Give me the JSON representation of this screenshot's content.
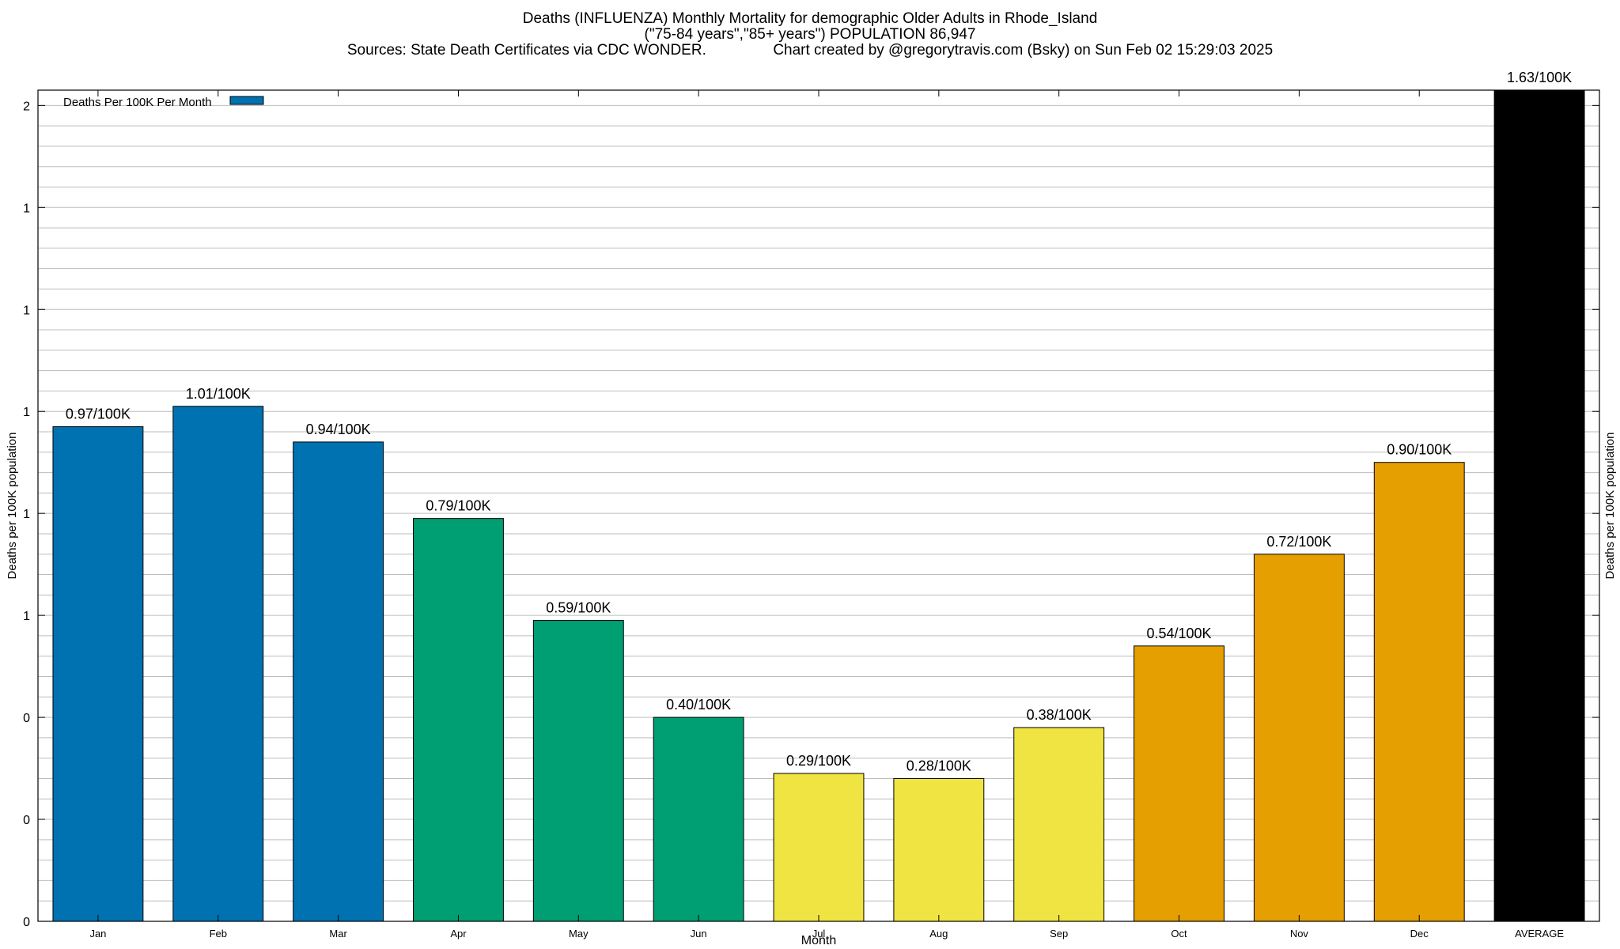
{
  "chart_data": {
    "type": "bar",
    "title_lines": [
      "Deaths (INFLUENZA) Monthly Mortality for demographic Older Adults in Rhode_Island",
      "(\"75-84 years\",\"85+ years\") POPULATION 86,947",
      "Sources: State Death Certificates via CDC WONDER.                Chart created by @gregorytravis.com (Bsky) on Sun Feb 02 15:29:03 2025"
    ],
    "xlabel": "Month",
    "ylabel": "Deaths per 100K population",
    "ylabel_right": "Deaths per 100K population",
    "ylim": [
      0,
      1.63
    ],
    "yticks": [
      {
        "value": 0.0,
        "label": "0"
      },
      {
        "value": 0.2,
        "label": "0"
      },
      {
        "value": 0.4,
        "label": "0"
      },
      {
        "value": 0.6,
        "label": "1"
      },
      {
        "value": 0.8,
        "label": "1"
      },
      {
        "value": 1.0,
        "label": "1"
      },
      {
        "value": 1.2,
        "label": "1"
      },
      {
        "value": 1.4,
        "label": "1"
      },
      {
        "value": 1.6,
        "label": "2"
      }
    ],
    "minor_grid_step": 0.04,
    "grid": true,
    "legend": {
      "position": "top-left",
      "label": "Deaths Per 100K Per Month",
      "color": "#0072b2"
    },
    "categories": [
      "Jan",
      "Feb",
      "Mar",
      "Apr",
      "May",
      "Jun",
      "Jul",
      "Aug",
      "Sep",
      "Oct",
      "Nov",
      "Dec",
      "AVERAGE"
    ],
    "values": [
      0.97,
      1.01,
      0.94,
      0.79,
      0.59,
      0.4,
      0.29,
      0.28,
      0.38,
      0.54,
      0.72,
      0.9,
      1.63
    ],
    "value_labels": [
      "0.97/100K",
      "1.01/100K",
      "0.94/100K",
      "0.79/100K",
      "0.59/100K",
      "0.40/100K",
      "0.29/100K",
      "0.28/100K",
      "0.38/100K",
      "0.54/100K",
      "0.72/100K",
      "0.90/100K",
      "1.63/100K"
    ],
    "colors": [
      "#0072b2",
      "#0072b2",
      "#0072b2",
      "#009e73",
      "#009e73",
      "#009e73",
      "#f0e442",
      "#f0e442",
      "#f0e442",
      "#e69f00",
      "#e69f00",
      "#e69f00",
      "#000000"
    ]
  }
}
